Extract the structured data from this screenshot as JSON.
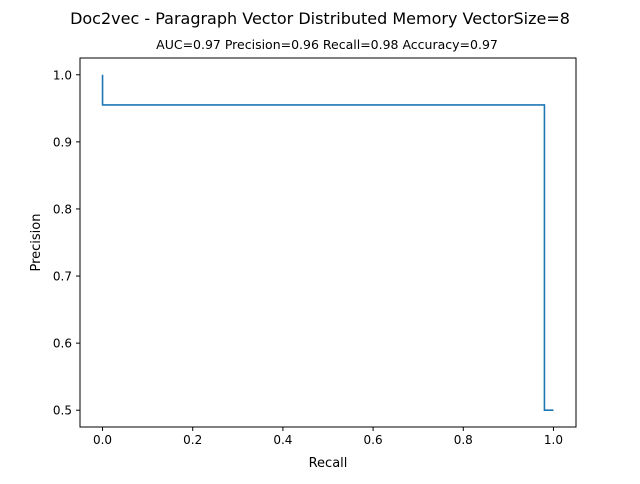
{
  "chart_data": {
    "type": "line",
    "title": "Doc2vec - Paragraph Vector Distributed Memory VectorSize=8",
    "subtitle": "AUC=0.97 Precision=0.96 Recall=0.98 Accuracy=0.97",
    "xlabel": "Recall",
    "ylabel": "Precision",
    "xlim": [
      -0.05,
      1.05
    ],
    "ylim": [
      0.475,
      1.025
    ],
    "x_ticks": [
      0.0,
      0.2,
      0.4,
      0.6,
      0.8,
      1.0
    ],
    "x_tick_labels": [
      "0.0",
      "0.2",
      "0.4",
      "0.6",
      "0.8",
      "1.0"
    ],
    "y_ticks": [
      0.5,
      0.6,
      0.7,
      0.8,
      0.9,
      1.0
    ],
    "y_tick_labels": [
      "0.5",
      "0.6",
      "0.7",
      "0.8",
      "0.9",
      "1.0"
    ],
    "grid": false,
    "legend": "none",
    "series": [
      {
        "color": "#1f77b4",
        "step": "post",
        "x": [
          0.0,
          0.0,
          0.98,
          0.98,
          1.0
        ],
        "y": [
          1.0,
          0.955,
          0.955,
          0.5,
          0.5
        ]
      }
    ]
  }
}
